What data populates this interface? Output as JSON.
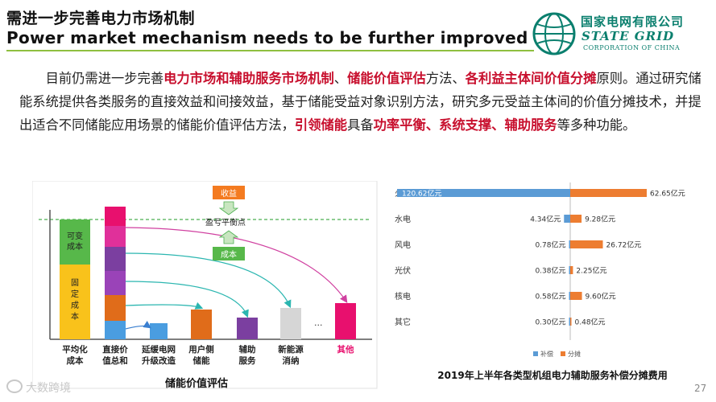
{
  "header": {
    "title_zh": "需进一步完善电力市场机制",
    "title_en": "Power market mechanism needs to be further improved"
  },
  "logo": {
    "name_zh": "国家电网有限公司",
    "name_en": "STATE GRID",
    "sub_en": "CORPORATION OF CHINA",
    "color": "#0a7f6e"
  },
  "paragraph": {
    "segments": [
      {
        "t": "目前仍需进一步完善",
        "hl": false
      },
      {
        "t": "电力市场和辅助服务市场机制",
        "hl": true
      },
      {
        "t": "、",
        "hl": false
      },
      {
        "t": "储能价值评估",
        "hl": true
      },
      {
        "t": "方法、",
        "hl": false
      },
      {
        "t": "各利益主体间价值分摊",
        "hl": true
      },
      {
        "t": "原则。通过研究储能系统提供各类服务的直接效益和间接效益，基于储能受益对象识别方法，研究多元受益主体间的价值分摊技术，并提出适合不同储能应用场景的储能价值评估方法，",
        "hl": false
      },
      {
        "t": "引领储能",
        "hl": true
      },
      {
        "t": "具备",
        "hl": false
      },
      {
        "t": "功率平衡、系统支撑、辅助服务",
        "hl": true
      },
      {
        "t": "等多种功能。",
        "hl": false
      }
    ]
  },
  "left_diagram": {
    "caption": "储能价值评估",
    "box_top": "收益",
    "box_bottom": "成本",
    "balance_label": "盈亏平衡点",
    "bar1_var": "可变成本",
    "bar1_fixed": "固定成本",
    "ellipsis": "...",
    "categories": [
      "平均化成本",
      "直接价值总和",
      "延缓电网升级改造",
      "用户侧储能",
      "辅助服务",
      "新能源消纳",
      "其他"
    ],
    "category_lines": [
      [
        "平均化",
        "成本"
      ],
      [
        "直接价",
        "值总和"
      ],
      [
        "延缓电网",
        "升级改造"
      ],
      [
        "用户侧",
        "储能"
      ],
      [
        "辅助",
        "服务"
      ],
      [
        "新能源",
        "消纳"
      ],
      [
        "其他"
      ]
    ],
    "other_color": "#e8106e"
  },
  "chart_data": {
    "type": "bar",
    "title": "2019年上半年各类型机组电力辅助服务补偿分摊费用",
    "categories": [
      "火电",
      "水电",
      "风电",
      "光伏",
      "核电",
      "其它"
    ],
    "series": [
      {
        "name": "补偿",
        "values": [
          120.62,
          4.34,
          0.78,
          0.38,
          0.58,
          0.3
        ],
        "labels": [
          "120.62亿元",
          "4.34亿元",
          "0.78亿元",
          "0.38亿元",
          "0.58亿元",
          "0.30亿元"
        ],
        "color": "#5b9bd5"
      },
      {
        "name": "分摊",
        "values": [
          62.65,
          9.28,
          26.72,
          2.25,
          9.6,
          0.48
        ],
        "labels": [
          "62.65亿元",
          "9.28亿元",
          "26.72亿元",
          "2.25亿元",
          "9.60亿元",
          "0.48亿元"
        ],
        "color": "#ed7d31"
      }
    ],
    "legend": "bottom",
    "unit": "亿元"
  },
  "footer": {
    "watermark": "大数跨境",
    "page_number": "27"
  }
}
